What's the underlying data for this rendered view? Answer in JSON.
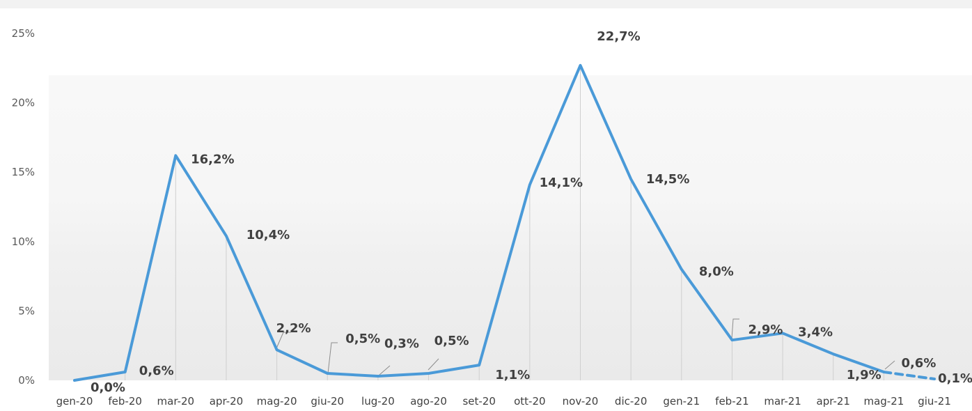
{
  "chart_data": {
    "type": "line",
    "categories": [
      "gen-20",
      "feb-20",
      "mar-20",
      "apr-20",
      "mag-20",
      "giu-20",
      "lug-20",
      "ago-20",
      "set-20",
      "ott-20",
      "nov-20",
      "dic-20",
      "gen-21",
      "feb-21",
      "mar-21",
      "apr-21",
      "mag-21",
      "giu-21"
    ],
    "series": [
      {
        "values": [
          0.0,
          0.6,
          16.2,
          10.4,
          2.2,
          0.5,
          0.3,
          0.5,
          1.1,
          14.1,
          22.7,
          14.5,
          8.0,
          2.9,
          3.4,
          1.9,
          0.6,
          0.1
        ],
        "labels": [
          "0,0%",
          "0,6%",
          "16,2%",
          "10,4%",
          "2,2%",
          "0,5%",
          "0,3%",
          "0,5%",
          "1,1%",
          "14,1%",
          "22,7%",
          "14,5%",
          "8,0%",
          "2,9%",
          "3,4%",
          "1,9%",
          "0,6%",
          "0,1%"
        ],
        "color": "#4a9ad8",
        "last_segment_dashed": true
      }
    ],
    "y_ticks": [
      "0%",
      "5%",
      "10%",
      "15%",
      "20%",
      "25%"
    ],
    "ylim": [
      0,
      25
    ],
    "drop_lines": true,
    "grid": false,
    "legend": "none",
    "title": "",
    "xlabel": "",
    "ylabel": ""
  }
}
